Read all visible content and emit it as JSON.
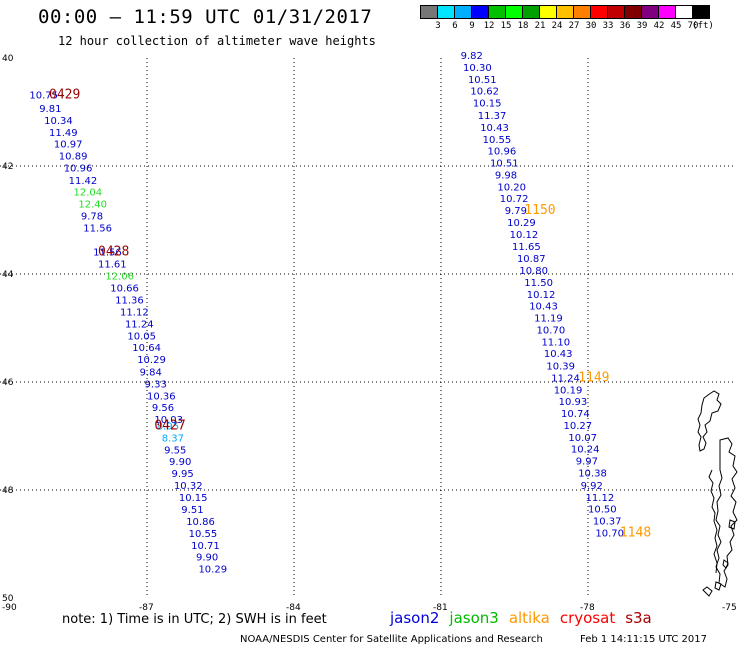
{
  "header": {
    "title": "00:00 — 11:59 UTC 01/31/2017",
    "subtitle": "12 hour collection of altimeter wave heights"
  },
  "legend": {
    "colors": [
      "#777777",
      "#00e5ff",
      "#00b0ff",
      "#0000ff",
      "#00c000",
      "#00ff00",
      "#00a000",
      "#ffff00",
      "#ffc000",
      "#ff8000",
      "#ff0000",
      "#c00000",
      "#800000",
      "#800080",
      "#ff00ff",
      "#ffffff",
      "#000000"
    ],
    "labels": [
      "3",
      "6",
      "9",
      "12",
      "15",
      "18",
      "21",
      "24",
      "27",
      "30",
      "33",
      "36",
      "39",
      "42",
      "45",
      "70",
      "(ft)"
    ]
  },
  "map": {
    "lon_range": [
      -90,
      -75
    ],
    "lat_range": [
      40,
      50
    ],
    "lon_ticks": [
      "-90",
      "-87",
      "-84",
      "-81",
      "-78",
      "-75"
    ],
    "lat_ticks": [
      "40",
      "42",
      "44",
      "46",
      "48",
      "50"
    ],
    "grid_lons": [
      -87,
      -84,
      -81,
      -78
    ],
    "grid_lats": [
      42,
      44,
      46,
      48
    ]
  },
  "tracks": [
    {
      "points": [
        {
          "lon": -89.4,
          "lat": 40.75,
          "v": "10.75",
          "c": "#0000cc"
        },
        {
          "lon": -89.2,
          "lat": 41.0,
          "v": "9.81",
          "c": "#0000cc"
        },
        {
          "lon": -89.1,
          "lat": 41.22,
          "v": "10.34",
          "c": "#0000cc"
        },
        {
          "lon": -89.0,
          "lat": 41.44,
          "v": "11.49",
          "c": "#0000cc"
        },
        {
          "lon": -88.9,
          "lat": 41.66,
          "v": "10.97",
          "c": "#0000cc"
        },
        {
          "lon": -88.8,
          "lat": 41.88,
          "v": "10.89",
          "c": "#0000cc"
        },
        {
          "lon": -88.7,
          "lat": 42.1,
          "v": "10.96",
          "c": "#0000cc"
        },
        {
          "lon": -88.6,
          "lat": 42.33,
          "v": "11.42",
          "c": "#0000cc"
        },
        {
          "lon": -88.5,
          "lat": 42.55,
          "v": "12.04",
          "c": "#22dd22"
        },
        {
          "lon": -88.4,
          "lat": 42.77,
          "v": "12.40",
          "c": "#22dd22"
        },
        {
          "lon": -88.35,
          "lat": 42.99,
          "v": "9.78",
          "c": "#0000cc"
        },
        {
          "lon": -88.3,
          "lat": 43.21,
          "v": "11.56",
          "c": "#0000cc"
        },
        {
          "lon": -88.1,
          "lat": 43.66,
          "v": "11.56",
          "c": "#0000cc"
        },
        {
          "lon": -88.0,
          "lat": 43.88,
          "v": "11.61",
          "c": "#0000cc"
        },
        {
          "lon": -87.85,
          "lat": 44.1,
          "v": "12.06",
          "c": "#22dd22"
        },
        {
          "lon": -87.75,
          "lat": 44.32,
          "v": "10.66",
          "c": "#0000cc"
        },
        {
          "lon": -87.65,
          "lat": 44.55,
          "v": "11.36",
          "c": "#0000cc"
        },
        {
          "lon": -87.55,
          "lat": 44.77,
          "v": "11.12",
          "c": "#0000cc"
        },
        {
          "lon": -87.45,
          "lat": 44.99,
          "v": "11.24",
          "c": "#0000cc"
        },
        {
          "lon": -87.4,
          "lat": 45.21,
          "v": "10.05",
          "c": "#0000cc"
        },
        {
          "lon": -87.3,
          "lat": 45.43,
          "v": "10.64",
          "c": "#0000cc"
        },
        {
          "lon": -87.2,
          "lat": 45.65,
          "v": "10.29",
          "c": "#0000cc"
        },
        {
          "lon": -87.15,
          "lat": 45.88,
          "v": "9.84",
          "c": "#0000cc"
        },
        {
          "lon": -87.05,
          "lat": 46.1,
          "v": "9.33",
          "c": "#0000cc"
        },
        {
          "lon": -87.0,
          "lat": 46.32,
          "v": "10.36",
          "c": "#0000cc"
        },
        {
          "lon": -86.9,
          "lat": 46.54,
          "v": "9.56",
          "c": "#0000cc"
        },
        {
          "lon": -86.85,
          "lat": 46.76,
          "v": "10.03",
          "c": "#0000cc"
        },
        {
          "lon": -86.8,
          "lat": 46.88,
          "v": "8.95",
          "c": "#00aaff"
        },
        {
          "lon": -86.7,
          "lat": 47.1,
          "v": "8.37",
          "c": "#00aaff"
        },
        {
          "lon": -86.65,
          "lat": 47.32,
          "v": "9.55",
          "c": "#0000cc"
        },
        {
          "lon": -86.55,
          "lat": 47.54,
          "v": "9.90",
          "c": "#0000cc"
        },
        {
          "lon": -86.5,
          "lat": 47.76,
          "v": "9.95",
          "c": "#0000cc"
        },
        {
          "lon": -86.45,
          "lat": 47.98,
          "v": "10.32",
          "c": "#0000cc"
        },
        {
          "lon": -86.35,
          "lat": 48.2,
          "v": "10.15",
          "c": "#0000cc"
        },
        {
          "lon": -86.3,
          "lat": 48.43,
          "v": "9.51",
          "c": "#0000cc"
        },
        {
          "lon": -86.2,
          "lat": 48.65,
          "v": "10.86",
          "c": "#0000cc"
        },
        {
          "lon": -86.15,
          "lat": 48.87,
          "v": "10.55",
          "c": "#0000cc"
        },
        {
          "lon": -86.1,
          "lat": 49.09,
          "v": "10.71",
          "c": "#0000cc"
        },
        {
          "lon": -86.0,
          "lat": 49.31,
          "v": "9.90",
          "c": "#0000cc"
        },
        {
          "lon": -85.95,
          "lat": 49.53,
          "v": "10.29",
          "c": "#0000cc"
        }
      ],
      "times": [
        {
          "lon": -89.0,
          "lat": 40.75,
          "t": "0429",
          "c": "#990000"
        },
        {
          "lon": -88.0,
          "lat": 43.66,
          "t": "0428",
          "c": "#990000"
        },
        {
          "lon": -86.85,
          "lat": 46.88,
          "t": "0427",
          "c": "#990000"
        }
      ]
    },
    {
      "points": [
        {
          "lon": -80.6,
          "lat": 40.02,
          "v": "9.82",
          "c": "#0000cc"
        },
        {
          "lon": -80.55,
          "lat": 40.24,
          "v": "10.30",
          "c": "#0000cc"
        },
        {
          "lon": -80.45,
          "lat": 40.46,
          "v": "10.51",
          "c": "#0000cc"
        },
        {
          "lon": -80.4,
          "lat": 40.68,
          "v": "10.62",
          "c": "#0000cc"
        },
        {
          "lon": -80.35,
          "lat": 40.9,
          "v": "10.15",
          "c": "#0000cc"
        },
        {
          "lon": -80.25,
          "lat": 41.13,
          "v": "11.37",
          "c": "#0000cc"
        },
        {
          "lon": -80.2,
          "lat": 41.35,
          "v": "10.43",
          "c": "#0000cc"
        },
        {
          "lon": -80.15,
          "lat": 41.57,
          "v": "10.55",
          "c": "#0000cc"
        },
        {
          "lon": -80.05,
          "lat": 41.79,
          "v": "10.96",
          "c": "#0000cc"
        },
        {
          "lon": -80.0,
          "lat": 42.01,
          "v": "10.51",
          "c": "#0000cc"
        },
        {
          "lon": -79.9,
          "lat": 42.23,
          "v": "9.98",
          "c": "#0000cc"
        },
        {
          "lon": -79.85,
          "lat": 42.45,
          "v": "10.20",
          "c": "#0000cc"
        },
        {
          "lon": -79.8,
          "lat": 42.67,
          "v": "10.72",
          "c": "#0000cc"
        },
        {
          "lon": -79.7,
          "lat": 42.89,
          "v": "9.79",
          "c": "#0000cc"
        },
        {
          "lon": -79.65,
          "lat": 43.11,
          "v": "10.29",
          "c": "#0000cc"
        },
        {
          "lon": -79.6,
          "lat": 43.33,
          "v": "10.12",
          "c": "#0000cc"
        },
        {
          "lon": -79.55,
          "lat": 43.56,
          "v": "11.65",
          "c": "#0000cc"
        },
        {
          "lon": -79.45,
          "lat": 43.78,
          "v": "10.87",
          "c": "#0000cc"
        },
        {
          "lon": -79.4,
          "lat": 44.0,
          "v": "10.80",
          "c": "#0000cc"
        },
        {
          "lon": -79.3,
          "lat": 44.22,
          "v": "11.50",
          "c": "#0000cc"
        },
        {
          "lon": -79.25,
          "lat": 44.44,
          "v": "10.12",
          "c": "#0000cc"
        },
        {
          "lon": -79.2,
          "lat": 44.66,
          "v": "10.43",
          "c": "#0000cc"
        },
        {
          "lon": -79.1,
          "lat": 44.88,
          "v": "11.19",
          "c": "#0000cc"
        },
        {
          "lon": -79.05,
          "lat": 45.1,
          "v": "10.70",
          "c": "#0000cc"
        },
        {
          "lon": -78.95,
          "lat": 45.32,
          "v": "11.10",
          "c": "#0000cc"
        },
        {
          "lon": -78.9,
          "lat": 45.54,
          "v": "10.43",
          "c": "#0000cc"
        },
        {
          "lon": -78.85,
          "lat": 45.77,
          "v": "10.39",
          "c": "#0000cc"
        },
        {
          "lon": -78.75,
          "lat": 45.99,
          "v": "11.24",
          "c": "#0000cc"
        },
        {
          "lon": -78.7,
          "lat": 46.21,
          "v": "10.19",
          "c": "#0000cc"
        },
        {
          "lon": -78.6,
          "lat": 46.43,
          "v": "10.93",
          "c": "#0000cc"
        },
        {
          "lon": -78.55,
          "lat": 46.65,
          "v": "10.74",
          "c": "#0000cc"
        },
        {
          "lon": -78.5,
          "lat": 46.87,
          "v": "10.27",
          "c": "#0000cc"
        },
        {
          "lon": -78.4,
          "lat": 47.09,
          "v": "10.07",
          "c": "#0000cc"
        },
        {
          "lon": -78.35,
          "lat": 47.31,
          "v": "10.24",
          "c": "#0000cc"
        },
        {
          "lon": -78.25,
          "lat": 47.53,
          "v": "9.97",
          "c": "#0000cc"
        },
        {
          "lon": -78.2,
          "lat": 47.75,
          "v": "10.38",
          "c": "#0000cc"
        },
        {
          "lon": -78.15,
          "lat": 47.98,
          "v": "9.92",
          "c": "#0000cc"
        },
        {
          "lon": -78.05,
          "lat": 48.2,
          "v": "11.12",
          "c": "#0000cc"
        },
        {
          "lon": -78.0,
          "lat": 48.42,
          "v": "10.50",
          "c": "#0000cc"
        },
        {
          "lon": -77.9,
          "lat": 48.64,
          "v": "10.37",
          "c": "#0000cc"
        },
        {
          "lon": -77.85,
          "lat": 48.86,
          "v": "10.70",
          "c": "#0000cc"
        }
      ],
      "times": [
        {
          "lon": -79.3,
          "lat": 42.89,
          "t": "1150",
          "c": "#ff9900"
        },
        {
          "lon": -78.2,
          "lat": 45.99,
          "t": "1149",
          "c": "#ff9900"
        },
        {
          "lon": -77.35,
          "lat": 48.86,
          "t": "1148",
          "c": "#ff9900"
        }
      ]
    }
  ],
  "note": "note: 1) Time is in UTC; 2) SWH is in feet",
  "satellites": [
    {
      "name": "jason2",
      "color": "#0000dd"
    },
    {
      "name": "jason3",
      "color": "#00bb00"
    },
    {
      "name": "altika",
      "color": "#ff9900"
    },
    {
      "name": "cryosat",
      "color": "#ff0000"
    },
    {
      "name": "s3a",
      "color": "#aa0000"
    }
  ],
  "footer": {
    "credit": "NOAA/NESDIS Center for Satellite Applications and Research",
    "timestamp": "Feb  1 14:11:15 UTC 2017"
  }
}
